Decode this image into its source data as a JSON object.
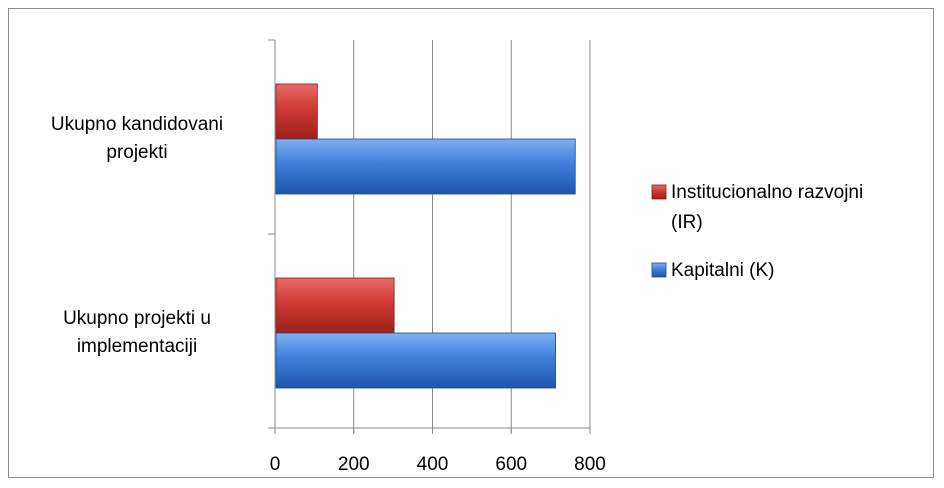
{
  "chart_data": {
    "type": "bar",
    "orientation": "horizontal",
    "categories": [
      {
        "lines": [
          "Ukupno kandidovani",
          "projekti"
        ]
      },
      {
        "lines": [
          "Ukupno projekti u",
          "implementaciji"
        ]
      }
    ],
    "series": [
      {
        "name_lines": [
          "Institucionalno razvojni",
          "(IR)"
        ],
        "color": "#c0392b",
        "values": [
          105,
          300
        ]
      },
      {
        "name_lines": [
          "Kapitalni (K)"
        ],
        "color": "#2e6bd1",
        "values": [
          760,
          710
        ]
      }
    ],
    "xticks": [
      "0",
      "200",
      "400",
      "600",
      "800"
    ],
    "xlim": [
      0,
      800
    ],
    "grid": true,
    "legend_position": "right"
  }
}
